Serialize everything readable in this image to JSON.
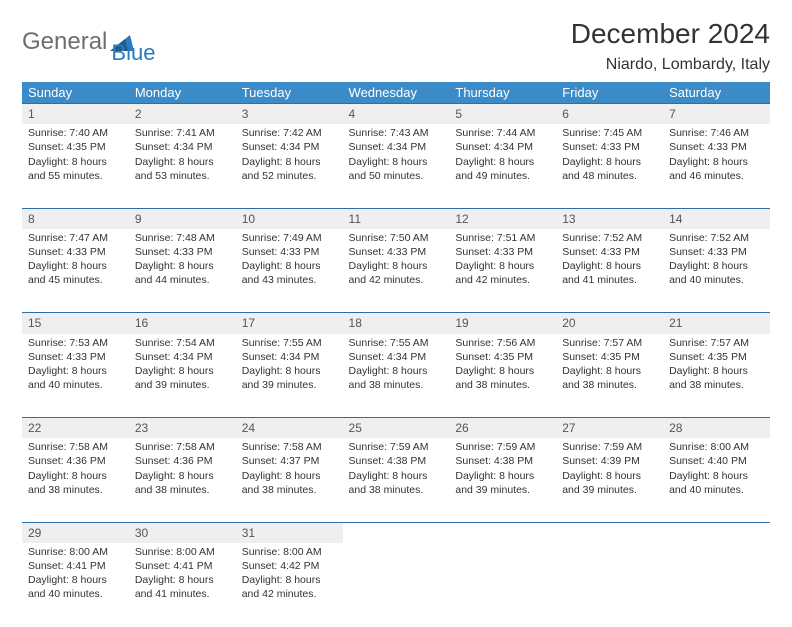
{
  "brand": {
    "part1": "General",
    "part2": "Blue",
    "color_gray": "#6e6e6e",
    "color_blue": "#2a7bbf"
  },
  "title": "December 2024",
  "location": "Niardo, Lombardy, Italy",
  "theme": {
    "header_bg": "#3b8bc8",
    "header_text": "#ffffff",
    "daynum_bg": "#efefef",
    "daynum_border": "#2a6fa8",
    "body_text": "#333333",
    "page_bg": "#ffffff",
    "title_fontsize": 28,
    "location_fontsize": 16,
    "th_fontsize": 13,
    "cell_fontsize": 10.5
  },
  "weekdays": [
    "Sunday",
    "Monday",
    "Tuesday",
    "Wednesday",
    "Thursday",
    "Friday",
    "Saturday"
  ],
  "weeks": [
    [
      {
        "n": "1",
        "sr": "7:40 AM",
        "ss": "4:35 PM",
        "dl": "8 hours and 55 minutes."
      },
      {
        "n": "2",
        "sr": "7:41 AM",
        "ss": "4:34 PM",
        "dl": "8 hours and 53 minutes."
      },
      {
        "n": "3",
        "sr": "7:42 AM",
        "ss": "4:34 PM",
        "dl": "8 hours and 52 minutes."
      },
      {
        "n": "4",
        "sr": "7:43 AM",
        "ss": "4:34 PM",
        "dl": "8 hours and 50 minutes."
      },
      {
        "n": "5",
        "sr": "7:44 AM",
        "ss": "4:34 PM",
        "dl": "8 hours and 49 minutes."
      },
      {
        "n": "6",
        "sr": "7:45 AM",
        "ss": "4:33 PM",
        "dl": "8 hours and 48 minutes."
      },
      {
        "n": "7",
        "sr": "7:46 AM",
        "ss": "4:33 PM",
        "dl": "8 hours and 46 minutes."
      }
    ],
    [
      {
        "n": "8",
        "sr": "7:47 AM",
        "ss": "4:33 PM",
        "dl": "8 hours and 45 minutes."
      },
      {
        "n": "9",
        "sr": "7:48 AM",
        "ss": "4:33 PM",
        "dl": "8 hours and 44 minutes."
      },
      {
        "n": "10",
        "sr": "7:49 AM",
        "ss": "4:33 PM",
        "dl": "8 hours and 43 minutes."
      },
      {
        "n": "11",
        "sr": "7:50 AM",
        "ss": "4:33 PM",
        "dl": "8 hours and 42 minutes."
      },
      {
        "n": "12",
        "sr": "7:51 AM",
        "ss": "4:33 PM",
        "dl": "8 hours and 42 minutes."
      },
      {
        "n": "13",
        "sr": "7:52 AM",
        "ss": "4:33 PM",
        "dl": "8 hours and 41 minutes."
      },
      {
        "n": "14",
        "sr": "7:52 AM",
        "ss": "4:33 PM",
        "dl": "8 hours and 40 minutes."
      }
    ],
    [
      {
        "n": "15",
        "sr": "7:53 AM",
        "ss": "4:33 PM",
        "dl": "8 hours and 40 minutes."
      },
      {
        "n": "16",
        "sr": "7:54 AM",
        "ss": "4:34 PM",
        "dl": "8 hours and 39 minutes."
      },
      {
        "n": "17",
        "sr": "7:55 AM",
        "ss": "4:34 PM",
        "dl": "8 hours and 39 minutes."
      },
      {
        "n": "18",
        "sr": "7:55 AM",
        "ss": "4:34 PM",
        "dl": "8 hours and 38 minutes."
      },
      {
        "n": "19",
        "sr": "7:56 AM",
        "ss": "4:35 PM",
        "dl": "8 hours and 38 minutes."
      },
      {
        "n": "20",
        "sr": "7:57 AM",
        "ss": "4:35 PM",
        "dl": "8 hours and 38 minutes."
      },
      {
        "n": "21",
        "sr": "7:57 AM",
        "ss": "4:35 PM",
        "dl": "8 hours and 38 minutes."
      }
    ],
    [
      {
        "n": "22",
        "sr": "7:58 AM",
        "ss": "4:36 PM",
        "dl": "8 hours and 38 minutes."
      },
      {
        "n": "23",
        "sr": "7:58 AM",
        "ss": "4:36 PM",
        "dl": "8 hours and 38 minutes."
      },
      {
        "n": "24",
        "sr": "7:58 AM",
        "ss": "4:37 PM",
        "dl": "8 hours and 38 minutes."
      },
      {
        "n": "25",
        "sr": "7:59 AM",
        "ss": "4:38 PM",
        "dl": "8 hours and 38 minutes."
      },
      {
        "n": "26",
        "sr": "7:59 AM",
        "ss": "4:38 PM",
        "dl": "8 hours and 39 minutes."
      },
      {
        "n": "27",
        "sr": "7:59 AM",
        "ss": "4:39 PM",
        "dl": "8 hours and 39 minutes."
      },
      {
        "n": "28",
        "sr": "8:00 AM",
        "ss": "4:40 PM",
        "dl": "8 hours and 40 minutes."
      }
    ],
    [
      {
        "n": "29",
        "sr": "8:00 AM",
        "ss": "4:41 PM",
        "dl": "8 hours and 40 minutes."
      },
      {
        "n": "30",
        "sr": "8:00 AM",
        "ss": "4:41 PM",
        "dl": "8 hours and 41 minutes."
      },
      {
        "n": "31",
        "sr": "8:00 AM",
        "ss": "4:42 PM",
        "dl": "8 hours and 42 minutes."
      },
      null,
      null,
      null,
      null
    ]
  ],
  "labels": {
    "sunrise": "Sunrise: ",
    "sunset": "Sunset: ",
    "daylight": "Daylight: "
  }
}
